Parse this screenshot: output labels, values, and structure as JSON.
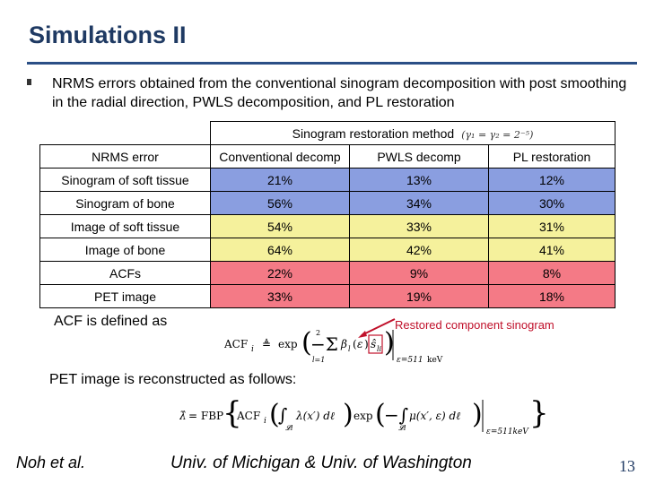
{
  "slide": {
    "title": "Simulations II",
    "bullet": "NRMS errors obtained from the conventional sinogram decomposition with post smoothing in the radial direction, PWLS decomposition, and PL restoration"
  },
  "table": {
    "group_header": "Sinogram restoration method",
    "group_header_eq": "(γ₁ = γ₂ = 2⁻⁵)",
    "columns": [
      "NRMS error",
      "Conventional decomp",
      "PWLS decomp",
      "PL restoration"
    ],
    "rows": [
      {
        "label": "Sinogram of soft tissue",
        "values": [
          "21%",
          "13%",
          "12%"
        ]
      },
      {
        "label": "Sinogram of bone",
        "values": [
          "56%",
          "34%",
          "30%"
        ]
      },
      {
        "label": "Image of soft tissue",
        "values": [
          "54%",
          "33%",
          "31%"
        ]
      },
      {
        "label": "Image of bone",
        "values": [
          "64%",
          "42%",
          "41%"
        ]
      },
      {
        "label": "ACFs",
        "values": [
          "22%",
          "9%",
          "8%"
        ]
      },
      {
        "label": "PET image",
        "values": [
          "33%",
          "19%",
          "18%"
        ]
      }
    ],
    "colors": {
      "blue": "#8a9ee0",
      "yellow": "#f5f19c",
      "red": "#f47a86"
    }
  },
  "acf_text": "ACF is defined as",
  "restored_label": "Restored component sinogram",
  "pet_text": "PET image is reconstructed as follows:",
  "footer": {
    "author": "Noh et al.",
    "institution": "Univ. of Michigan & Univ. of Washington",
    "page": "13"
  }
}
